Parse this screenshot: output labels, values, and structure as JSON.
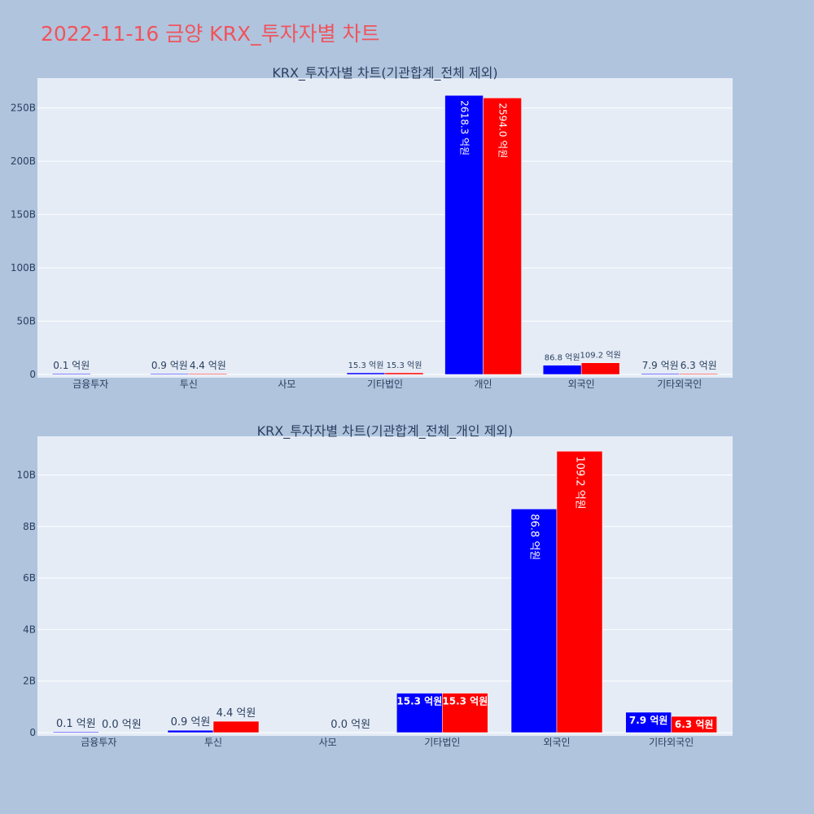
{
  "page": {
    "title": "2022-11-16 금양 KRX_투자자별 차트"
  },
  "colors": {
    "background": "#b0c4de",
    "plot_bg": "#e5ecf6",
    "series_a": "#0000ff",
    "series_b": "#ff0000",
    "title": "#f0545c"
  },
  "chart_data": [
    {
      "type": "bar",
      "title": "KRX_투자자별 차트(기관합계_전체 제외)",
      "xlabel": "",
      "ylabel": "",
      "categories": [
        "금융투자",
        "투신",
        "사모",
        "기타법인",
        "개인",
        "외국인",
        "기타외국인"
      ],
      "series": [
        {
          "color": "#0000ff",
          "values": [
            10000000,
            90000000,
            0,
            1530000000,
            261830000000,
            8680000000,
            790000000
          ],
          "labels": [
            "0.1 억원",
            "0.9 억원",
            "",
            "15.3 억원",
            "2618.3 억원",
            "86.8 억원",
            "7.9 억원"
          ]
        },
        {
          "color": "#ff0000",
          "values": [
            0,
            440000000,
            0,
            1530000000,
            259400000000,
            10920000000,
            630000000
          ],
          "labels": [
            "",
            "4.4 억원",
            "",
            "15.3 억원",
            "2594.0 억원",
            "109.2 억원",
            "6.3 억원"
          ]
        }
      ],
      "yticks": [
        0,
        50000000000,
        100000000000,
        150000000000,
        200000000000,
        250000000000
      ],
      "ytick_labels": [
        "0",
        "50B",
        "100B",
        "150B",
        "200B",
        "250B"
      ],
      "ylim": [
        0,
        278000000000
      ],
      "grid": true,
      "legend": "none"
    },
    {
      "type": "bar",
      "title": "KRX_투자자별 차트(기관합계_전체_개인 제외)",
      "xlabel": "",
      "ylabel": "",
      "categories": [
        "금융투자",
        "투신",
        "사모",
        "기타법인",
        "외국인",
        "기타외국인"
      ],
      "series": [
        {
          "color": "#0000ff",
          "values": [
            10000000,
            90000000,
            0,
            1530000000,
            8680000000,
            790000000
          ],
          "labels": [
            "0.1 억원",
            "0.9 억원",
            "",
            "15.3 억원",
            "86.8 억원",
            "7.9 억원"
          ]
        },
        {
          "color": "#ff0000",
          "values": [
            0,
            440000000,
            0,
            1530000000,
            10920000000,
            630000000
          ],
          "labels": [
            "0.0 억원",
            "4.4 억원",
            "0.0 억원",
            "15.3 억원",
            "109.2 억원",
            "6.3 억원"
          ]
        }
      ],
      "yticks": [
        0,
        2000000000,
        4000000000,
        6000000000,
        8000000000,
        10000000000
      ],
      "ytick_labels": [
        "0",
        "2B",
        "4B",
        "6B",
        "8B",
        "10B"
      ],
      "ylim": [
        0,
        11500000000
      ],
      "grid": true,
      "legend": "none"
    }
  ]
}
